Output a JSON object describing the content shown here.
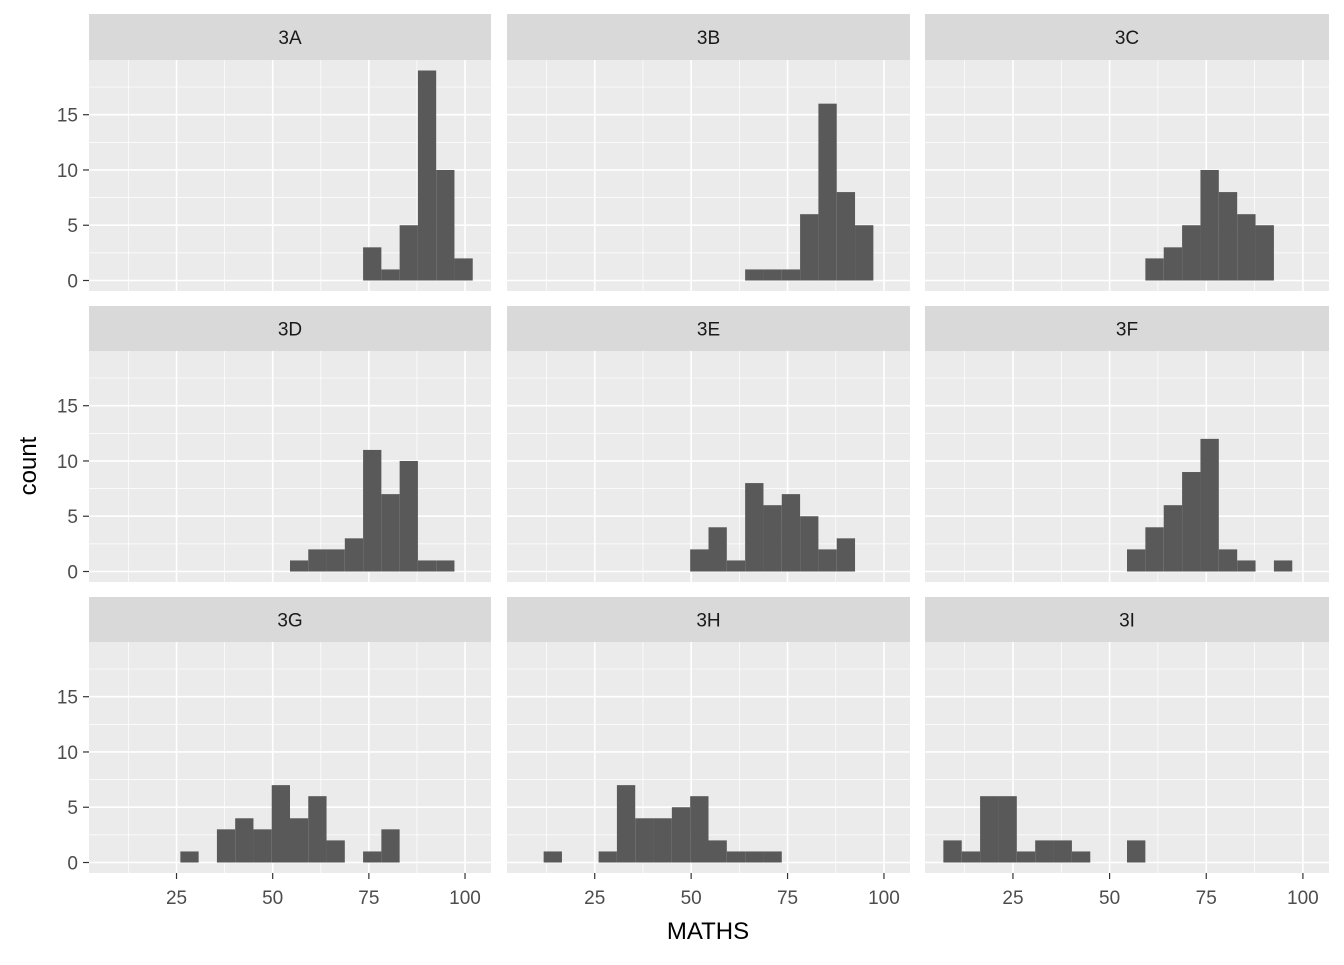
{
  "chart_data": {
    "type": "histogram",
    "xlabel": "MATHS",
    "ylabel": "count",
    "color": "#595959",
    "bins": [
      7,
      11.75,
      16.5,
      21.25,
      26,
      30.75,
      35.5,
      40.25,
      45,
      49.75,
      54.5,
      59.25,
      64,
      68.75,
      73.5,
      78.25,
      83,
      87.75,
      92.5,
      97.25,
      102
    ],
    "series": [
      {
        "name": "3A",
        "values": [
          0,
          0,
          0,
          0,
          0,
          0,
          0,
          0,
          0,
          0,
          0,
          0,
          0,
          0,
          3,
          1,
          5,
          19,
          10,
          2
        ]
      },
      {
        "name": "3B",
        "values": [
          0,
          0,
          0,
          0,
          0,
          0,
          0,
          0,
          0,
          0,
          0,
          0,
          1,
          1,
          1,
          6,
          16,
          8,
          5,
          0
        ]
      },
      {
        "name": "3C",
        "values": [
          0,
          0,
          0,
          0,
          0,
          0,
          0,
          0,
          0,
          0,
          0,
          2,
          3,
          5,
          10,
          8,
          6,
          5,
          0,
          0
        ]
      },
      {
        "name": "3D",
        "values": [
          0,
          0,
          0,
          0,
          0,
          0,
          0,
          0,
          0,
          0,
          1,
          2,
          2,
          3,
          11,
          7,
          10,
          1,
          1,
          0
        ]
      },
      {
        "name": "3E",
        "values": [
          0,
          0,
          0,
          0,
          0,
          0,
          0,
          0,
          0,
          2,
          4,
          1,
          8,
          6,
          7,
          5,
          2,
          3,
          0,
          0
        ]
      },
      {
        "name": "3F",
        "values": [
          0,
          0,
          0,
          0,
          0,
          0,
          0,
          0,
          0,
          0,
          2,
          4,
          6,
          9,
          12,
          2,
          1,
          0,
          1,
          0
        ]
      },
      {
        "name": "3G",
        "values": [
          0,
          0,
          0,
          0,
          1,
          0,
          3,
          4,
          3,
          7,
          4,
          6,
          2,
          0,
          1,
          3,
          0,
          0,
          0,
          0
        ]
      },
      {
        "name": "3H",
        "values": [
          0,
          1,
          0,
          0,
          1,
          7,
          4,
          4,
          5,
          6,
          2,
          1,
          1,
          1,
          0,
          0,
          0,
          0,
          0,
          0
        ]
      },
      {
        "name": "3I",
        "values": [
          2,
          1,
          6,
          6,
          1,
          2,
          2,
          1,
          0,
          0,
          2,
          0,
          0,
          0,
          0,
          0,
          0,
          0,
          0,
          0
        ]
      }
    ],
    "xlim": [
      2.25,
      106.75
    ],
    "xticks": [
      25,
      50,
      75,
      100
    ],
    "xminor": [
      12.5,
      37.5,
      62.5,
      87.5
    ],
    "ylim": [
      -0.95,
      19.95
    ],
    "yticks": [
      0,
      5,
      10,
      15
    ],
    "yminor": [
      2.5,
      7.5,
      12.5,
      17.5
    ],
    "grid": true
  }
}
